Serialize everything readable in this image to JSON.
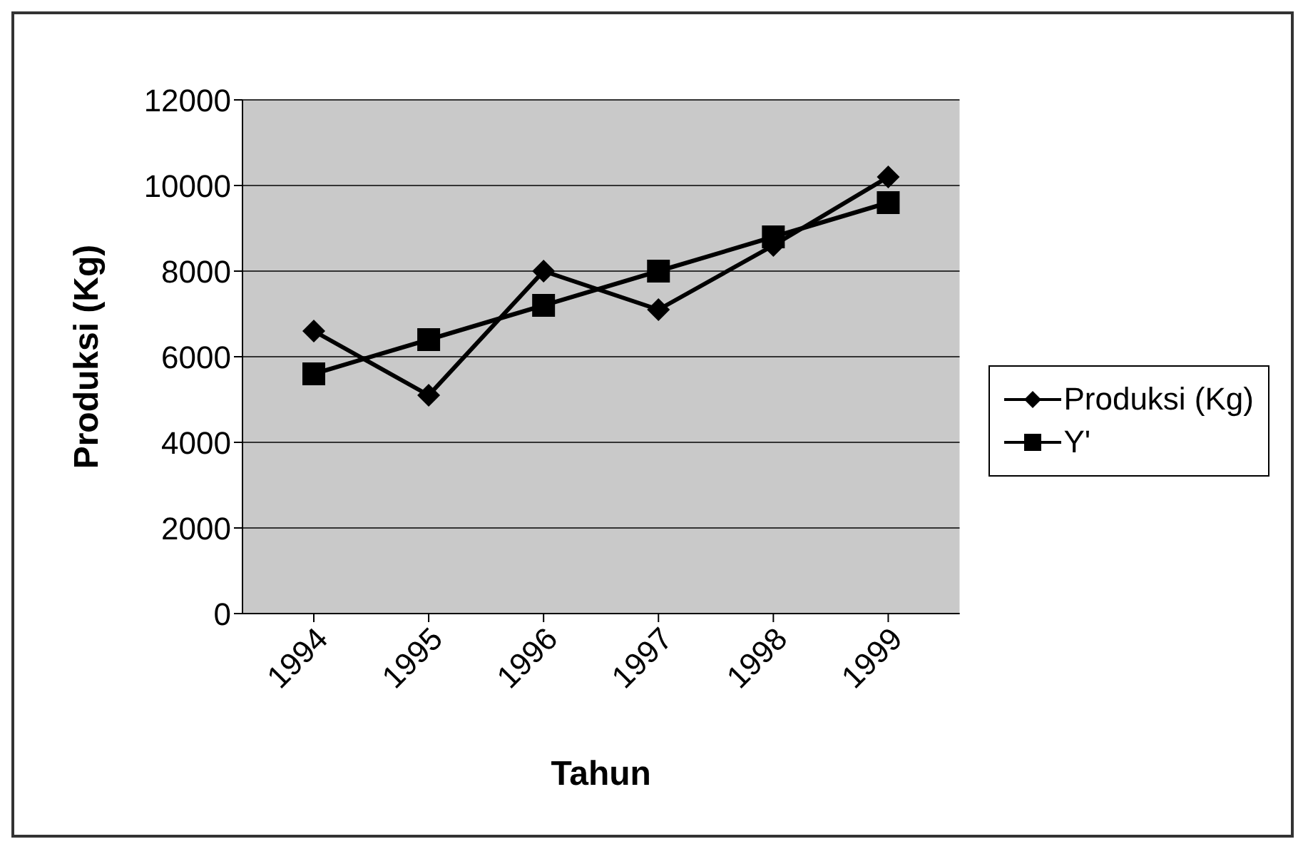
{
  "chart_data": {
    "type": "line",
    "xlabel": "Tahun",
    "ylabel": "Produksi (Kg)",
    "categories": [
      "1994",
      "1995",
      "1996",
      "1997",
      "1998",
      "1999"
    ],
    "series": [
      {
        "name": "Produksi (Kg)",
        "color": "#000000",
        "marker": "diamond",
        "values": [
          6600,
          5100,
          8000,
          7100,
          8600,
          10200
        ]
      },
      {
        "name": "Y'",
        "color": "#000000",
        "marker": "square",
        "values": [
          5600,
          6400,
          7200,
          8000,
          8800,
          9600
        ]
      }
    ],
    "ylim": [
      0,
      12000
    ],
    "yticks": [
      0,
      2000,
      4000,
      6000,
      8000,
      10000,
      12000
    ],
    "grid": "y",
    "legend": "right",
    "line_style": "solid"
  }
}
